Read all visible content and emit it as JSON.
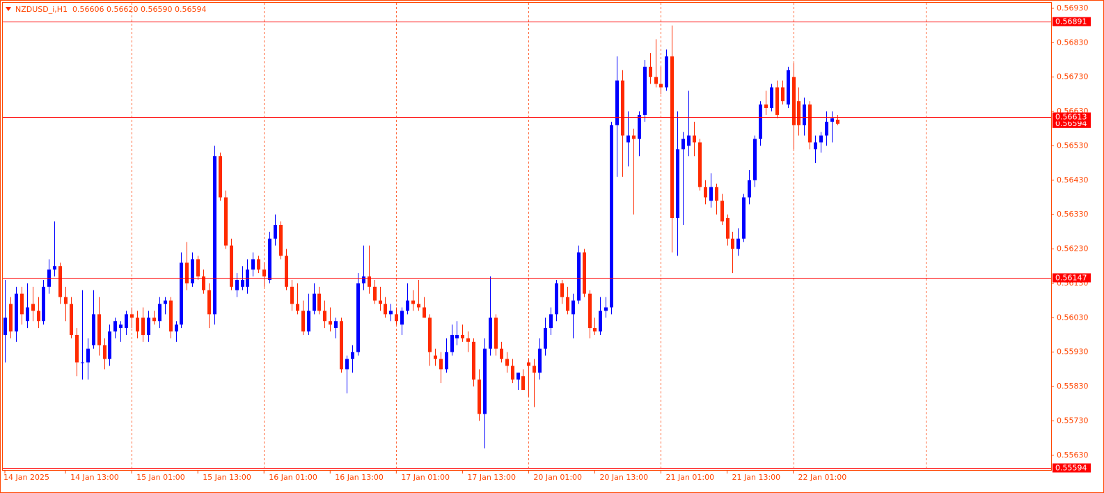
{
  "chart_data": {
    "type": "candlestick",
    "symbol": "NZDUSD_i,H1",
    "quote": [
      "0.56606",
      "0.56620",
      "0.56590",
      "0.56594"
    ],
    "categories": [
      "14 Jan 2025",
      null,
      null,
      null,
      null,
      null,
      null,
      null,
      null,
      null,
      null,
      "14 Jan 13:00",
      null,
      null,
      null,
      null,
      null,
      null,
      null,
      null,
      null,
      null,
      null,
      "15 Jan 01:00",
      null,
      null,
      null,
      null,
      null,
      null,
      null,
      null,
      null,
      null,
      null,
      "15 Jan 13:00",
      null,
      null,
      null,
      null,
      null,
      null,
      null,
      null,
      null,
      null,
      null,
      "16 Jan 01:00",
      null,
      null,
      null,
      null,
      null,
      null,
      null,
      null,
      null,
      null,
      null,
      "16 Jan 13:00",
      null,
      null,
      null,
      null,
      null,
      null,
      null,
      null,
      null,
      null,
      null,
      "17 Jan 01:00",
      null,
      null,
      null,
      null,
      null,
      null,
      null,
      null,
      null,
      null,
      null,
      "17 Jan 13:00",
      null,
      null,
      null,
      null,
      null,
      null,
      null,
      null,
      null,
      null,
      null,
      "20 Jan 01:00",
      null,
      null,
      null,
      null,
      null,
      null,
      null,
      null,
      null,
      null,
      null,
      "20 Jan 13:00",
      null,
      null,
      null,
      null,
      null,
      null,
      null,
      null,
      null,
      null,
      null,
      "21 Jan 01:00",
      null,
      null,
      null,
      null,
      null,
      null,
      null,
      null,
      null,
      null,
      null,
      "21 Jan 13:00",
      null,
      null,
      null,
      null,
      null,
      null,
      null,
      null,
      null,
      null,
      null,
      "22 Jan 01:00",
      null,
      null,
      null,
      null,
      null,
      null,
      null,
      null
    ],
    "open": [
      0.5598,
      0.5607,
      0.5599,
      0.561,
      0.5602,
      0.5607,
      0.5605,
      0.5602,
      0.5612,
      0.5617,
      0.5618,
      0.5609,
      0.5607,
      0.5598,
      0.559,
      0.559,
      0.5595,
      0.5604,
      0.5595,
      0.5591,
      0.5599,
      0.56,
      0.56,
      0.5604,
      0.5603,
      0.5603,
      0.5598,
      0.5603,
      0.5602,
      0.5607,
      0.5608,
      0.5599,
      0.5601,
      0.5619,
      0.5613,
      0.562,
      0.5615,
      0.5611,
      0.5604,
      0.565,
      0.5638,
      0.5624,
      0.5611,
      0.5612,
      0.5612,
      0.5617,
      0.562,
      0.5617,
      0.5614,
      0.5626,
      0.563,
      0.5621,
      0.5612,
      0.5607,
      0.5605,
      0.5599,
      0.5605,
      0.561,
      0.5605,
      0.5602,
      0.56,
      0.5602,
      0.5588,
      0.5591,
      0.5593,
      0.5613,
      0.5615,
      0.5612,
      0.5608,
      0.5607,
      0.5604,
      0.5604,
      0.5601,
      0.5605,
      0.5608,
      0.5607,
      0.5606,
      0.5603,
      0.5592,
      0.5591,
      0.5588,
      0.5593,
      0.5597,
      0.5598,
      0.5597,
      0.5596,
      0.5585,
      0.5575,
      0.5594,
      0.5603,
      0.5594,
      0.5591,
      0.5589,
      0.5585,
      0.5586,
      0.559,
      0.5589,
      0.5587,
      0.5594,
      0.56,
      0.5604,
      0.5613,
      0.5609,
      0.5604,
      0.5608,
      0.5622,
      0.561,
      0.56,
      0.5599,
      0.5605,
      0.5606,
      0.5659,
      0.5672,
      0.5654,
      0.5656,
      0.5655,
      0.5662,
      0.5676,
      0.5673,
      0.5671,
      0.567,
      0.5679,
      0.5632,
      0.5652,
      0.5653,
      0.5656,
      0.5654,
      0.5641,
      0.5637,
      0.5641,
      0.5637,
      0.5632,
      0.5626,
      0.5623,
      0.5626,
      0.5638,
      0.5643,
      0.5655,
      0.5665,
      0.5664,
      0.567,
      0.567,
      0.5665,
      0.5673,
      0.5666,
      0.5659,
      0.5665,
      0.5652,
      0.5654,
      0.5656,
      0.566,
      0.56606
    ],
    "high": [
      0.5614,
      0.5609,
      0.5612,
      0.5612,
      0.5613,
      0.5612,
      0.5609,
      0.5614,
      0.562,
      0.5631,
      0.5619,
      0.5612,
      0.5609,
      0.56,
      0.5611,
      0.5597,
      0.5611,
      0.5609,
      0.5597,
      0.5601,
      0.5603,
      0.5602,
      0.5605,
      0.5606,
      0.5605,
      0.5606,
      0.5605,
      0.5605,
      0.5609,
      0.5609,
      0.5609,
      0.5602,
      0.5622,
      0.5625,
      0.5622,
      0.5621,
      0.5617,
      0.5613,
      0.5653,
      0.5651,
      0.564,
      0.5626,
      0.5616,
      0.5618,
      0.562,
      0.5622,
      0.5621,
      0.5619,
      0.5628,
      0.5633,
      0.5631,
      0.5623,
      0.5614,
      0.5613,
      0.5608,
      0.561,
      0.5613,
      0.5612,
      0.5608,
      0.5606,
      0.5603,
      0.5603,
      0.5592,
      0.5595,
      0.5616,
      0.5624,
      0.5624,
      0.5614,
      0.5612,
      0.5609,
      0.5607,
      0.5606,
      0.5606,
      0.5613,
      0.5611,
      0.5614,
      0.5609,
      0.5604,
      0.5594,
      0.5593,
      0.5597,
      0.5601,
      0.5602,
      0.5601,
      0.5599,
      0.5597,
      0.5588,
      0.5597,
      0.5615,
      0.5604,
      0.5596,
      0.5593,
      0.5591,
      0.5587,
      0.5588,
      0.5591,
      0.5591,
      0.5597,
      0.5603,
      0.5606,
      0.5614,
      0.5614,
      0.5612,
      0.561,
      0.5624,
      0.5623,
      0.5611,
      0.5603,
      0.5609,
      0.5609,
      0.566,
      0.5679,
      0.5675,
      0.5663,
      0.5658,
      0.5663,
      0.5678,
      0.568,
      0.5684,
      0.5676,
      0.5681,
      0.5688,
      0.5663,
      0.5657,
      0.5669,
      0.566,
      0.5655,
      0.5643,
      0.5645,
      0.5642,
      0.5639,
      0.5633,
      0.5628,
      0.5629,
      0.5639,
      0.5646,
      0.5656,
      0.5666,
      0.5669,
      0.5671,
      0.5672,
      0.5672,
      0.5676,
      0.5677,
      0.567,
      0.5667,
      0.5666,
      0.5656,
      0.5657,
      0.5663,
      0.5663,
      0.5662
    ],
    "low": [
      0.559,
      0.5597,
      0.5596,
      0.5601,
      0.56,
      0.5602,
      0.56,
      0.5601,
      0.561,
      0.5615,
      0.5607,
      0.5602,
      0.5597,
      0.5586,
      0.5585,
      0.5585,
      0.5594,
      0.5592,
      0.5588,
      0.5589,
      0.5597,
      0.5596,
      0.5598,
      0.56,
      0.5597,
      0.5596,
      0.5596,
      0.5601,
      0.56,
      0.5604,
      0.5597,
      0.5596,
      0.56,
      0.5611,
      0.5612,
      0.5614,
      0.561,
      0.56,
      0.5601,
      0.5637,
      0.5623,
      0.5611,
      0.5609,
      0.5611,
      0.561,
      0.5615,
      0.5616,
      0.5612,
      0.5613,
      0.5624,
      0.562,
      0.5611,
      0.5605,
      0.5604,
      0.5598,
      0.5598,
      0.5604,
      0.5604,
      0.56,
      0.5599,
      0.5597,
      0.5587,
      0.5581,
      0.5587,
      0.5592,
      0.5611,
      0.561,
      0.5607,
      0.5605,
      0.5603,
      0.5602,
      0.5601,
      0.5598,
      0.5604,
      0.5605,
      0.5605,
      0.5603,
      0.5589,
      0.5589,
      0.5584,
      0.5587,
      0.5592,
      0.5595,
      0.5596,
      0.5593,
      0.5583,
      0.5573,
      0.5565,
      0.5592,
      0.5592,
      0.559,
      0.5587,
      0.5584,
      0.5582,
      0.5582,
      0.558,
      0.5577,
      0.5585,
      0.5592,
      0.5598,
      0.5602,
      0.5607,
      0.5604,
      0.5597,
      0.5607,
      0.5609,
      0.5597,
      0.5598,
      0.5598,
      0.5603,
      0.5604,
      0.5644,
      0.5644,
      0.5647,
      0.5633,
      0.565,
      0.566,
      0.5671,
      0.567,
      0.5668,
      0.5669,
      0.5622,
      0.5621,
      0.563,
      0.565,
      0.565,
      0.564,
      0.5636,
      0.5635,
      0.5633,
      0.563,
      0.5624,
      0.5616,
      0.5621,
      0.5625,
      0.5636,
      0.5641,
      0.5653,
      0.5662,
      0.5663,
      0.5661,
      0.5665,
      0.5664,
      0.5652,
      0.5656,
      0.5656,
      0.5652,
      0.5648,
      0.5651,
      0.5653,
      0.5654,
      0.5659
    ],
    "close": [
      0.5603,
      0.5599,
      0.561,
      0.5604,
      0.5606,
      0.5605,
      0.5602,
      0.5612,
      0.5617,
      0.5618,
      0.5609,
      0.5607,
      0.5598,
      0.559,
      0.559,
      0.5594,
      0.5604,
      0.5595,
      0.5591,
      0.5599,
      0.5602,
      0.5601,
      0.5604,
      0.5603,
      0.5599,
      0.5598,
      0.5603,
      0.5602,
      0.5607,
      0.5608,
      0.5599,
      0.5601,
      0.5619,
      0.5613,
      0.562,
      0.5615,
      0.5611,
      0.5604,
      0.565,
      0.5638,
      0.5624,
      0.5612,
      0.5614,
      0.5614,
      0.5617,
      0.562,
      0.5617,
      0.5615,
      0.5626,
      0.563,
      0.5621,
      0.5612,
      0.5607,
      0.5605,
      0.5599,
      0.5605,
      0.561,
      0.5605,
      0.5602,
      0.5601,
      0.5602,
      0.5588,
      0.5591,
      0.5593,
      0.5613,
      0.5615,
      0.5612,
      0.5608,
      0.5607,
      0.5604,
      0.5605,
      0.5602,
      0.5605,
      0.5608,
      0.5607,
      0.5606,
      0.5603,
      0.5593,
      0.5591,
      0.5588,
      0.5593,
      0.5598,
      0.5598,
      0.5597,
      0.5596,
      0.5585,
      0.5575,
      0.5594,
      0.5603,
      0.5594,
      0.5591,
      0.5589,
      0.5585,
      0.5587,
      0.5582,
      0.5589,
      0.5587,
      0.5594,
      0.56,
      0.5604,
      0.5613,
      0.5609,
      0.5605,
      0.5608,
      0.5622,
      0.561,
      0.56,
      0.5599,
      0.5605,
      0.5606,
      0.5659,
      0.5672,
      0.5656,
      0.5656,
      0.5655,
      0.5662,
      0.5676,
      0.5673,
      0.5671,
      0.567,
      0.5679,
      0.5632,
      0.5652,
      0.5655,
      0.5656,
      0.5654,
      0.5641,
      0.5638,
      0.5641,
      0.5637,
      0.5631,
      0.5626,
      0.5623,
      0.5626,
      0.5638,
      0.5643,
      0.5655,
      0.5665,
      0.5664,
      0.567,
      0.5662,
      0.5666,
      0.5675,
      0.5659,
      0.5659,
      0.5665,
      0.5654,
      0.5654,
      0.5656,
      0.566,
      0.5661,
      0.56594
    ],
    "up_color": "#0000ff",
    "down_color": "#ff2a00",
    "axis_color": "#ff4500",
    "level_color": "#ff0000",
    "ylim": [
      0.55587,
      0.56946
    ],
    "yticks": [
      {
        "value": 0.5693,
        "label": "0.56930"
      },
      {
        "value": 0.5683,
        "label": "0.56830"
      },
      {
        "value": 0.5673,
        "label": "0.56730"
      },
      {
        "value": 0.5663,
        "label": "0.56630"
      },
      {
        "value": 0.5653,
        "label": "0.56530"
      },
      {
        "value": 0.5643,
        "label": "0.56430"
      },
      {
        "value": 0.5633,
        "label": "0.56330"
      },
      {
        "value": 0.5623,
        "label": "0.56230"
      },
      {
        "value": 0.5613,
        "label": "0.56130"
      },
      {
        "value": 0.5603,
        "label": "0.56030"
      },
      {
        "value": 0.5593,
        "label": "0.55930"
      },
      {
        "value": 0.5583,
        "label": "0.55830"
      },
      {
        "value": 0.5573,
        "label": "0.55730"
      },
      {
        "value": 0.5563,
        "label": "0.55630"
      }
    ],
    "levels": [
      0.56891,
      0.56613,
      0.56147,
      0.55594
    ],
    "grid": true
  }
}
